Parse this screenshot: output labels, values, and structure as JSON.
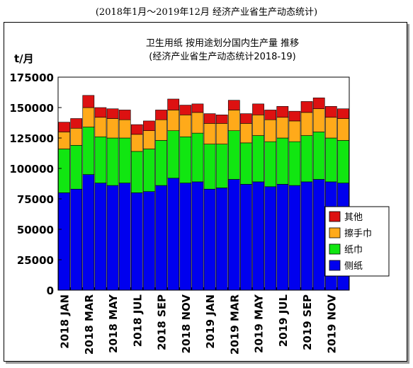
{
  "page": {
    "caption": "(2018年1月～2019年12月 经济产业省生产动态统计)"
  },
  "chart_data": {
    "type": "bar",
    "stacked": true,
    "title": "卫生用纸 按用途划分国内生产量 推移",
    "subtitle": "(经济产业省生产动态统计2018-19)",
    "ylabel": "t/月",
    "ylim": [
      0,
      175000
    ],
    "yticks": [
      0,
      25000,
      50000,
      75000,
      100000,
      125000,
      150000,
      175000
    ],
    "grid": false,
    "legend_position": "right",
    "x_tick_labels": [
      {
        "index": 0,
        "label": "2018 JAN"
      },
      {
        "index": 2,
        "label": "2018 MAR"
      },
      {
        "index": 4,
        "label": "2018 MAY"
      },
      {
        "index": 6,
        "label": "2018 JUL"
      },
      {
        "index": 8,
        "label": "2018 SEP"
      },
      {
        "index": 10,
        "label": "2018 NOV"
      },
      {
        "index": 12,
        "label": "2019 JAN"
      },
      {
        "index": 14,
        "label": "2019 MAR"
      },
      {
        "index": 16,
        "label": "2019 MAY"
      },
      {
        "index": 18,
        "label": "2019 JUL"
      },
      {
        "index": 20,
        "label": "2019 SEP"
      },
      {
        "index": 22,
        "label": "2019 NOV"
      }
    ],
    "series": [
      {
        "name": "侧纸",
        "color": "#0000ee",
        "values": [
          80000,
          83000,
          95000,
          88000,
          86000,
          88000,
          80000,
          81000,
          86000,
          92000,
          88000,
          89000,
          83000,
          84000,
          91000,
          87000,
          89000,
          85000,
          87000,
          86000,
          89000,
          91000,
          89000,
          88000
        ]
      },
      {
        "name": "纸巾",
        "color": "#11e611",
        "values": [
          36000,
          36000,
          39000,
          38000,
          39000,
          37000,
          34000,
          35000,
          37000,
          39000,
          38000,
          40000,
          37000,
          36000,
          40000,
          34000,
          38000,
          37000,
          38000,
          36000,
          38000,
          39000,
          36000,
          35000
        ]
      },
      {
        "name": "擦手巾",
        "color": "#ffaa1a",
        "values": [
          14000,
          14000,
          16000,
          16000,
          16000,
          15000,
          14000,
          15000,
          17000,
          17000,
          18000,
          17000,
          17000,
          17000,
          17000,
          16000,
          17000,
          18000,
          17000,
          17000,
          19000,
          19000,
          17000,
          18000
        ]
      },
      {
        "name": "其他",
        "color": "#dd1111",
        "values": [
          8000,
          8000,
          10000,
          8000,
          8000,
          8000,
          8000,
          8000,
          8000,
          9000,
          8000,
          7000,
          8000,
          7000,
          8000,
          8000,
          9000,
          8000,
          9000,
          8000,
          9000,
          9000,
          9000,
          8000
        ]
      }
    ],
    "legend_order": [
      "其他",
      "擦手巾",
      "纸巾",
      "侧纸"
    ]
  }
}
